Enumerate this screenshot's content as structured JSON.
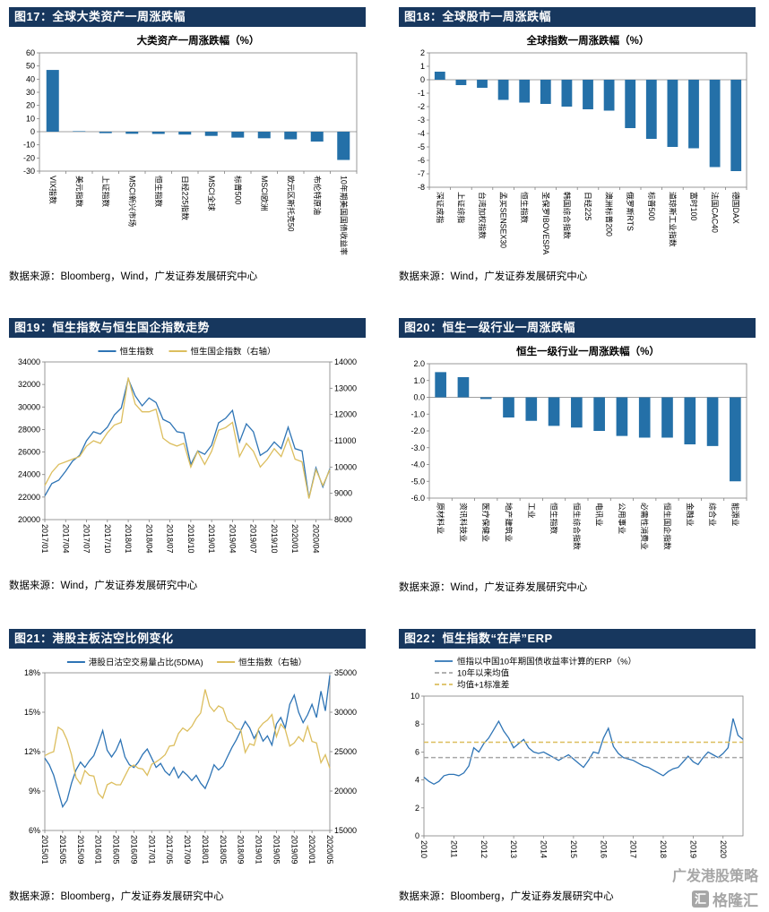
{
  "page": {
    "watermark_title": "广发港股策略",
    "watermark_logo": "格隆汇",
    "watermark_logo_glyph": "汇"
  },
  "colors": {
    "header_bg": "#17375E",
    "bar_blue": "#2470A8",
    "line_blue": "#2E74B5",
    "gold": "#DCBE5E",
    "dash_gray": "#A6A6A6"
  },
  "figures": [
    {
      "header": "图17：全球大类资产一周涨跌幅",
      "source": "数据来源：Bloomberg，Wind，广发证券发展研究中心"
    },
    {
      "header": "图18：全球股市一周涨跌幅",
      "source": "数据来源：Wind，广发证券发展研究中心"
    },
    {
      "header": "图19：恒生指数与恒生国企指数走势",
      "source": "数据来源：Wind，广发证券发展研究中心"
    },
    {
      "header": "图20：恒生一级行业一周涨跌幅",
      "source": "数据来源：Wind，广发证券发展研究中心"
    },
    {
      "header": "图21：港股主板沽空比例变化",
      "source": "数据来源：Bloomberg，广发证券发展研究中心"
    },
    {
      "header": "图22：恒生指数“在岸”ERP",
      "source": "数据来源：Bloomberg，广发证券发展研究中心"
    }
  ],
  "chart_data": [
    {
      "type": "bar",
      "title": "大类资产一周涨跌幅（%）",
      "categories": [
        "VIX指数",
        "美元指数",
        "上证指数",
        "MSCI新兴市场",
        "恒生指数",
        "日经225指数",
        "MSCI全球",
        "标普500",
        "MSCI欧洲",
        "欧元区斯托克50",
        "布伦特原油",
        "10年期美国国债收益率"
      ],
      "values": [
        47.0,
        0.4,
        -1.1,
        -1.6,
        -1.7,
        -2.2,
        -3.2,
        -4.5,
        -5.0,
        -5.8,
        -7.5,
        -21.5
      ],
      "ylim": [
        -30,
        60
      ],
      "ytick": 10,
      "ytick_decimals": 0,
      "bar_color": "#2470A8"
    },
    {
      "type": "bar",
      "title": "全球指数一周涨跌幅（%）",
      "categories": [
        "深证成指",
        "上证综指",
        "台湾加权指数",
        "孟买SENSEX30",
        "恒生指数",
        "圣保罗IBOVESPA",
        "韩国综合指数",
        "日经225",
        "澳洲标普200",
        "俄罗斯RTS",
        "标普500",
        "道琼斯工业指数",
        "富时100",
        "法国CAC40",
        "德国DAX"
      ],
      "values": [
        0.6,
        -0.4,
        -0.6,
        -1.5,
        -1.7,
        -1.8,
        -2.0,
        -2.2,
        -2.3,
        -3.6,
        -4.4,
        -5.0,
        -5.1,
        -6.5,
        -6.8
      ],
      "ylim": [
        -8,
        2
      ],
      "ytick": 1,
      "ytick_decimals": 0,
      "bar_color": "#2470A8"
    },
    {
      "type": "line",
      "legend_mode": "row",
      "legend": [
        {
          "label": "恒生指数",
          "color": "#2E74B5",
          "dash": false
        },
        {
          "label": "恒生国企指数（右轴）",
          "color": "#DCBE5E",
          "dash": false
        }
      ],
      "ylim_left": [
        20000,
        34000
      ],
      "ytick_left": 2000,
      "ylim_right": [
        8000,
        14000
      ],
      "ytick_right": 1000,
      "x_labels": [
        "2017/01",
        "2017/04",
        "2017/07",
        "2017/10",
        "2018/01",
        "2018/04",
        "2018/07",
        "2018/10",
        "2019/01",
        "2019/04",
        "2019/07",
        "2019/10",
        "2020/01",
        "2020/04"
      ],
      "x_label_every": 3,
      "series": [
        {
          "name": "恒生指数",
          "axis": "left",
          "color": "#2E74B5",
          "values": [
            22100,
            23200,
            23500,
            24300,
            25200,
            25700,
            27000,
            27800,
            27600,
            28200,
            29300,
            29900,
            32500,
            31000,
            30100,
            30800,
            30400,
            28900,
            28600,
            27800,
            27700,
            24900,
            26100,
            25800,
            26600,
            28600,
            29000,
            29700,
            26900,
            28500,
            27800,
            25700,
            26100,
            26900,
            26300,
            28200,
            26300,
            26100,
            21900,
            24600,
            22900,
            24500
          ]
        },
        {
          "name": "恒生国企指数（右轴）",
          "axis": "right",
          "color": "#DCBE5E",
          "values": [
            9300,
            9800,
            10100,
            10200,
            10300,
            10400,
            10800,
            11000,
            10900,
            11300,
            11600,
            11700,
            13400,
            12400,
            12100,
            12100,
            12200,
            11100,
            10900,
            10800,
            10900,
            10000,
            10600,
            10100,
            10600,
            11400,
            11500,
            11700,
            10400,
            10900,
            10600,
            10000,
            10300,
            10700,
            10400,
            11100,
            10300,
            10200,
            8800,
            9900,
            9300,
            9900
          ]
        }
      ]
    },
    {
      "type": "bar",
      "title": "恒生一级行业一周涨跌幅（%）",
      "categories": [
        "原材料业",
        "资讯科技业",
        "医疗保健业",
        "地产建筑业",
        "工业",
        "恒生指数",
        "恒生综合指数",
        "电讯业",
        "公用事业",
        "必需性消费业",
        "恒生国企指数",
        "金融业",
        "综合业",
        "能源业"
      ],
      "values": [
        1.5,
        1.2,
        -0.1,
        -1.2,
        -1.4,
        -1.7,
        -1.8,
        -2.0,
        -2.3,
        -2.4,
        -2.4,
        -2.8,
        -2.9,
        -5.0
      ],
      "ylim": [
        -6,
        2
      ],
      "ytick": 1,
      "ytick_decimals": 1,
      "bar_color": "#2470A8"
    },
    {
      "type": "line",
      "legend_mode": "row",
      "legend": [
        {
          "label": "港股日沽空交易量占比(5DMA)",
          "color": "#2E74B5",
          "dash": false
        },
        {
          "label": "恒生指数（右轴）",
          "color": "#DCBE5E",
          "dash": false
        }
      ],
      "ylim_left": [
        6,
        18
      ],
      "ytick_left": 3,
      "ytick_suffix_left": "%",
      "ylim_right": [
        15000,
        35000
      ],
      "ytick_right": 5000,
      "x_labels": [
        "2015/01",
        "2015/05",
        "2015/09",
        "2016/01",
        "2016/05",
        "2016/09",
        "2017/01",
        "2017/05",
        "2017/09",
        "2018/01",
        "2018/05",
        "2018/09",
        "2019/01",
        "2019/05",
        "2019/09",
        "2020/01",
        "2020/05"
      ],
      "x_label_every": 4,
      "series": [
        {
          "name": "港股日沽空交易量占比(5DMA)",
          "axis": "left",
          "color": "#2E74B5",
          "values": [
            11.5,
            11.0,
            10.2,
            9.0,
            7.8,
            8.3,
            9.6,
            10.6,
            11.2,
            10.8,
            11.3,
            11.7,
            12.6,
            13.6,
            12.1,
            11.6,
            12.1,
            12.9,
            11.6,
            11.0,
            10.8,
            11.2,
            11.8,
            12.2,
            11.5,
            10.8,
            11.1,
            10.5,
            10.2,
            10.8,
            10.0,
            10.5,
            10.2,
            9.8,
            10.2,
            9.6,
            9.2,
            10.0,
            11.0,
            10.6,
            10.9,
            11.6,
            12.3,
            12.9,
            13.6,
            14.3,
            13.8,
            13.0,
            13.6,
            12.8,
            13.2,
            12.5,
            14.1,
            14.6,
            13.8,
            15.6,
            16.3,
            15.0,
            14.2,
            14.8,
            15.6,
            14.6,
            16.6,
            15.1,
            17.8
          ]
        },
        {
          "name": "恒生指数（右轴）",
          "axis": "right",
          "color": "#DCBE5E",
          "values": [
            24500,
            24800,
            25000,
            28100,
            27700,
            26500,
            24600,
            21700,
            20900,
            22600,
            22000,
            21900,
            19700,
            19100,
            20800,
            21100,
            20800,
            20800,
            21900,
            23000,
            23300,
            22900,
            22800,
            22000,
            23400,
            23700,
            24100,
            24600,
            25700,
            25800,
            27300,
            28000,
            27600,
            28200,
            29200,
            29900,
            32900,
            30800,
            30100,
            30800,
            30500,
            28900,
            28600,
            27900,
            27800,
            24900,
            26000,
            25800,
            27900,
            28600,
            29000,
            29700,
            26900,
            28500,
            27800,
            25700,
            26100,
            26900,
            26300,
            28200,
            26300,
            26100,
            23600,
            24600,
            22900
          ]
        }
      ]
    },
    {
      "type": "line",
      "legend_mode": "rows",
      "legend": [
        {
          "label": "恒指以中国10年期国债收益率计算的ERP（%）",
          "color": "#2E74B5",
          "dash": false
        },
        {
          "label": "10年以来均值",
          "color": "#A6A6A6",
          "dash": true
        },
        {
          "label": "均值+1标准差",
          "color": "#DCBE5E",
          "dash": true
        }
      ],
      "ylim_left": [
        0,
        10
      ],
      "ytick_left": 2,
      "x_labels": [
        "2010",
        "2011",
        "2012",
        "2013",
        "2014",
        "2015",
        "2016",
        "2017",
        "2018",
        "2019",
        "2020"
      ],
      "x_label_every": 6,
      "series": [
        {
          "name": "恒指以中国10年期国债收益率计算的ERP（%）",
          "axis": "left",
          "color": "#2E74B5",
          "values": [
            4.2,
            3.9,
            3.7,
            3.9,
            4.3,
            4.4,
            4.4,
            4.3,
            4.5,
            5.0,
            6.3,
            6.0,
            6.6,
            7.0,
            7.6,
            8.2,
            7.5,
            7.0,
            6.3,
            6.6,
            6.9,
            6.3,
            6.0,
            5.9,
            6.0,
            5.8,
            5.6,
            5.4,
            5.6,
            5.8,
            5.5,
            5.2,
            4.9,
            5.4,
            6.0,
            5.9,
            7.0,
            7.7,
            6.4,
            5.9,
            5.6,
            5.5,
            5.4,
            5.2,
            5.0,
            4.9,
            4.7,
            4.5,
            4.3,
            4.6,
            4.8,
            4.9,
            5.3,
            5.7,
            5.3,
            5.1,
            5.6,
            6.0,
            5.8,
            5.6,
            5.9,
            6.3,
            8.4,
            7.2,
            6.9
          ]
        },
        {
          "name": "10年以来均值",
          "axis": "left",
          "color": "#A6A6A6",
          "dash": true,
          "const": 5.6
        },
        {
          "name": "均值+1标准差",
          "axis": "left",
          "color": "#DCBE5E",
          "dash": true,
          "const": 6.7
        }
      ]
    }
  ]
}
